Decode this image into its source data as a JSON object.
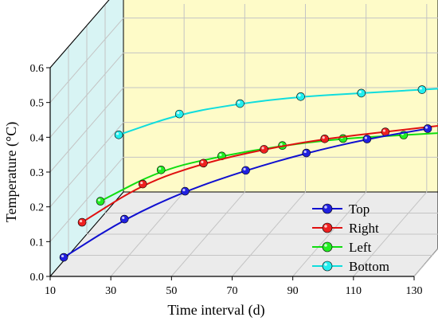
{
  "chart_data": {
    "type": "line",
    "style": "3d-perspective",
    "xlabel": "Time interval (d)",
    "ylabel": "Temperature (°C)",
    "x_ticks": [
      10,
      30,
      50,
      70,
      90,
      110,
      130
    ],
    "y_ticks": [
      "0.0",
      "0.1",
      "0.2",
      "0.3",
      "0.4",
      "0.5",
      "0.6"
    ],
    "xlim": [
      10,
      130
    ],
    "ylim": [
      0,
      0.6
    ],
    "x": [
      14,
      34,
      54,
      74,
      94,
      114,
      134
    ],
    "grid": true,
    "legend": "bottom-right",
    "series": [
      {
        "name": "Top",
        "color": "#1010d0",
        "marker_color": "#2020e0",
        "values": [
          0.05,
          0.16,
          0.24,
          0.3,
          0.35,
          0.39,
          0.42
        ]
      },
      {
        "name": "Right",
        "color": "#e01010",
        "marker_color": "#ee2020",
        "values": [
          0.09,
          0.2,
          0.26,
          0.3,
          0.33,
          0.35,
          0.37
        ]
      },
      {
        "name": "Left",
        "color": "#10dd10",
        "marker_color": "#22ee22",
        "values": [
          0.09,
          0.18,
          0.22,
          0.25,
          0.27,
          0.28,
          0.29
        ]
      },
      {
        "name": "Bottom",
        "color": "#10dddd",
        "marker_color": "#22eeee",
        "values": [
          0.22,
          0.28,
          0.31,
          0.33,
          0.34,
          0.35,
          0.36
        ]
      }
    ],
    "colors": {
      "back_wall": "#fefbc8",
      "side_wall": "#d8f4f4",
      "floor": "#ebebeb"
    }
  }
}
